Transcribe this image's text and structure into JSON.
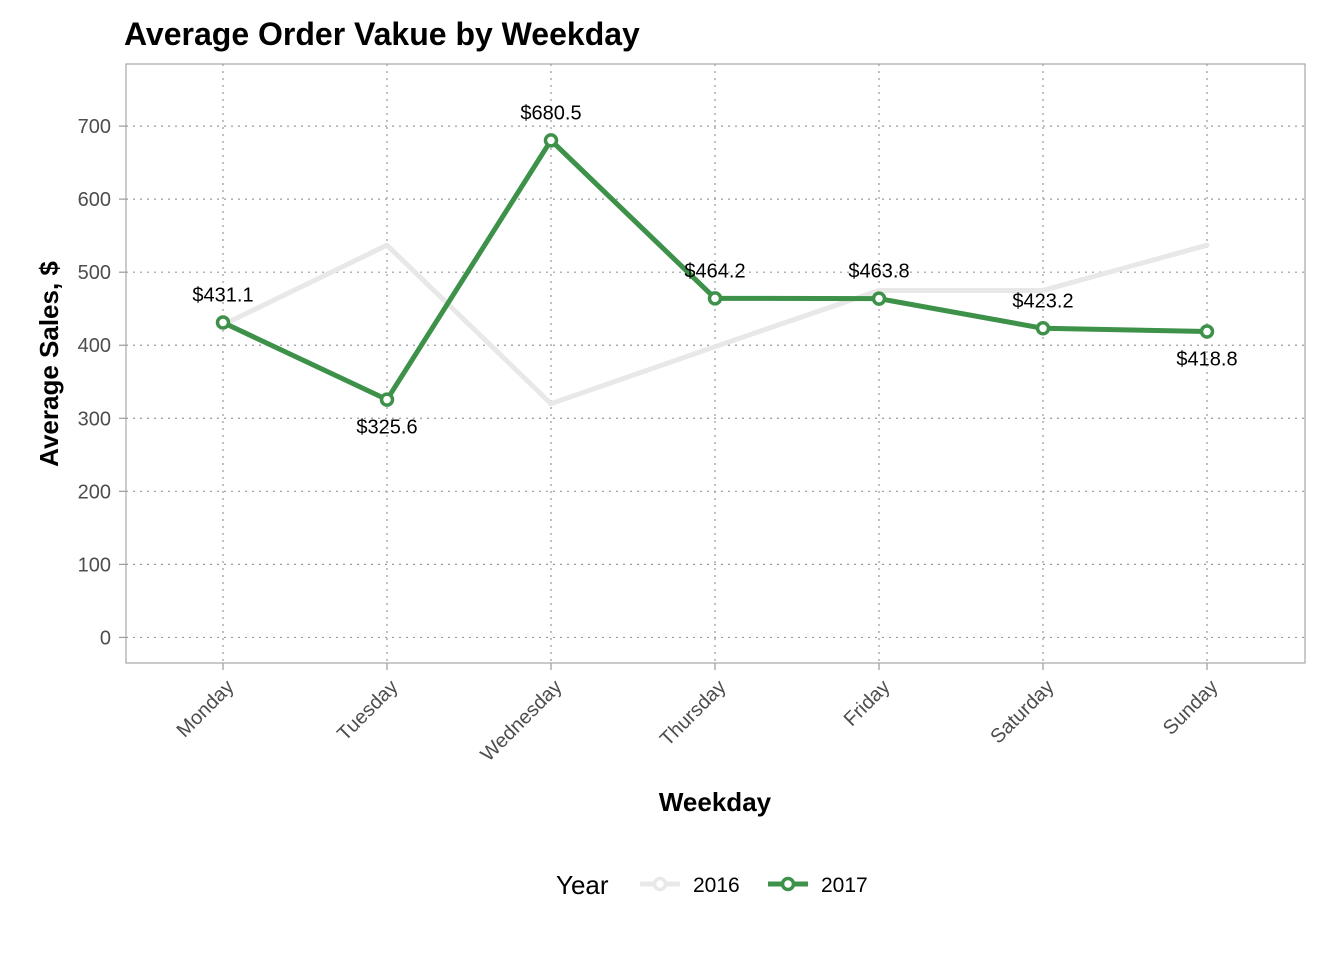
{
  "chart_data": {
    "type": "line",
    "title": "Average Order Vakue by Weekday",
    "xlabel": "Weekday",
    "ylabel": "Average Sales, $",
    "categories": [
      "Monday",
      "Tuesday",
      "Wednesday",
      "Thursday",
      "Friday",
      "Saturday",
      "Sunday"
    ],
    "ylim": [
      -35,
      785
    ],
    "yticks": [
      0,
      100,
      200,
      300,
      400,
      500,
      600,
      700
    ],
    "grid": true,
    "legend_position": "bottom",
    "legend_title": "Year",
    "series": [
      {
        "name": "2016",
        "color": "#e8e8e8",
        "values": [
          428,
          537,
          320,
          398,
          475,
          475,
          537
        ],
        "markers": false,
        "labels": []
      },
      {
        "name": "2017",
        "color": "#3d9149",
        "values": [
          431.1,
          325.6,
          680.5,
          464.2,
          463.8,
          423.2,
          418.8
        ],
        "markers": true,
        "labels": [
          "$431.1",
          "$325.6",
          "$680.5",
          "$464.2",
          "$463.8",
          "$423.2",
          "$418.8"
        ]
      }
    ]
  }
}
